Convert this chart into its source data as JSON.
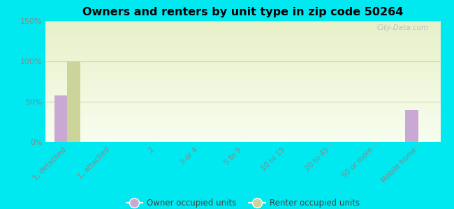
{
  "title": "Owners and renters by unit type in zip code 50264",
  "categories": [
    "1, detached",
    "1, attached",
    "2",
    "3 or 4",
    "5 to 9",
    "10 to 19",
    "20 to 49",
    "50 or more",
    "Mobile home"
  ],
  "owner_values": [
    58,
    0,
    0,
    0,
    0,
    0,
    0,
    0,
    40
  ],
  "renter_values": [
    100,
    0,
    0,
    0,
    0,
    0,
    0,
    0,
    0
  ],
  "owner_color": "#c9a8d4",
  "renter_color": "#cdd49a",
  "background_outer": "#00e8f0",
  "background_inner_top": "#e8f0c8",
  "background_inner_bottom": "#f8fef0",
  "ylim": [
    0,
    150
  ],
  "yticks": [
    0,
    50,
    100,
    150
  ],
  "bar_width": 0.3,
  "watermark": "City-Data.com",
  "legend_owner": "Owner occupied units",
  "legend_renter": "Renter occupied units",
  "tick_color": "#888888",
  "grid_color": "#e8e8c8"
}
